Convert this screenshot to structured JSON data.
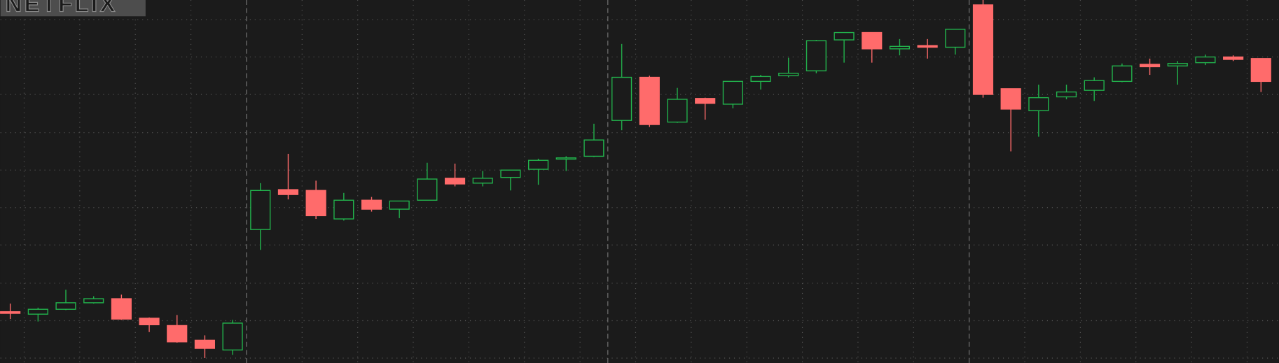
{
  "logo": "NETFLIX",
  "chart_data": {
    "type": "candlestick",
    "categories": [
      null,
      null,
      null,
      null,
      null,
      null,
      null,
      null,
      null,
      null,
      null,
      null,
      null,
      null,
      null,
      null,
      null,
      null,
      null,
      null,
      null,
      null,
      null,
      null,
      null,
      null,
      null,
      null,
      null,
      null,
      null,
      null,
      null,
      null,
      null,
      null,
      null,
      null,
      null,
      null,
      null,
      null,
      null,
      null,
      null,
      null
    ],
    "open": [
      63,
      60,
      66,
      74,
      79,
      55,
      46,
      28,
      16,
      164,
      213,
      212,
      177,
      200,
      189,
      200,
      227,
      221,
      228,
      238,
      251,
      254,
      298,
      351,
      296,
      325,
      318,
      346,
      353,
      359,
      397,
      406,
      386,
      390,
      388,
      440,
      337,
      310,
      327,
      335,
      346,
      367,
      365,
      369,
      376,
      374
    ],
    "high": [
      73,
      68,
      90,
      82,
      84,
      56,
      59,
      34,
      53,
      221,
      257,
      224,
      209,
      204,
      199,
      246,
      245,
      236,
      237,
      251,
      254,
      294,
      392,
      353,
      338,
      326,
      346,
      354,
      375,
      397,
      406,
      406,
      398,
      398,
      410,
      446,
      337,
      342,
      342,
      351,
      368,
      374,
      371,
      379,
      378,
      374
    ],
    "low": [
      54,
      51,
      65,
      73,
      53,
      38,
      25,
      6,
      10,
      139,
      201,
      177,
      175,
      186,
      178,
      200,
      217,
      217,
      212,
      219,
      236,
      253,
      286,
      290,
      295,
      299,
      313,
      336,
      351,
      356,
      369,
      369,
      378,
      374,
      379,
      326,
      260,
      278,
      324,
      322,
      345,
      354,
      342,
      366,
      371,
      333
    ],
    "close": [
      61,
      66,
      74,
      79,
      54,
      47,
      26,
      18,
      49,
      212,
      207,
      181,
      200,
      189,
      199,
      226,
      220,
      227,
      237,
      249,
      252,
      274,
      351,
      293,
      324,
      319,
      346,
      352,
      356,
      396,
      406,
      386,
      389,
      388,
      410,
      330,
      312,
      326,
      333,
      347,
      365,
      364,
      368,
      376,
      373,
      346
    ],
    "up_color": "#22b24c",
    "down_color": "#ff6b6b",
    "session_breaks": [
      9,
      22,
      35
    ],
    "ylim": [
      0,
      446
    ],
    "yticks": [
      6,
      52,
      98,
      145,
      191,
      237,
      283,
      330,
      376,
      422
    ],
    "grid": true
  }
}
